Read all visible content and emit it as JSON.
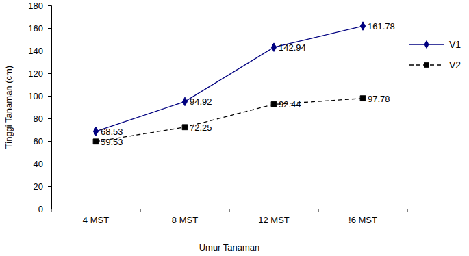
{
  "chart_data": {
    "type": "line",
    "x_label": "Umur Tanaman",
    "y_label": "Tinggi Tanaman (cm)",
    "categories": [
      "4 MST",
      "8 MST",
      "12 MST",
      "!6 MST"
    ],
    "series": [
      {
        "name": "V1",
        "color": "#000080",
        "marker": "diamond",
        "line_style": "solid",
        "values": [
          68.53,
          94.92,
          142.94,
          161.78
        ]
      },
      {
        "name": "V2",
        "color": "#000000",
        "marker": "square",
        "line_style": "dashed",
        "values": [
          59.53,
          72.25,
          92.44,
          97.78
        ]
      }
    ],
    "ylim": [
      0,
      180
    ],
    "yticks": [
      0,
      20,
      40,
      60,
      80,
      100,
      120,
      140,
      160,
      180
    ],
    "grid": false,
    "legend": "right",
    "data_labels": true
  }
}
